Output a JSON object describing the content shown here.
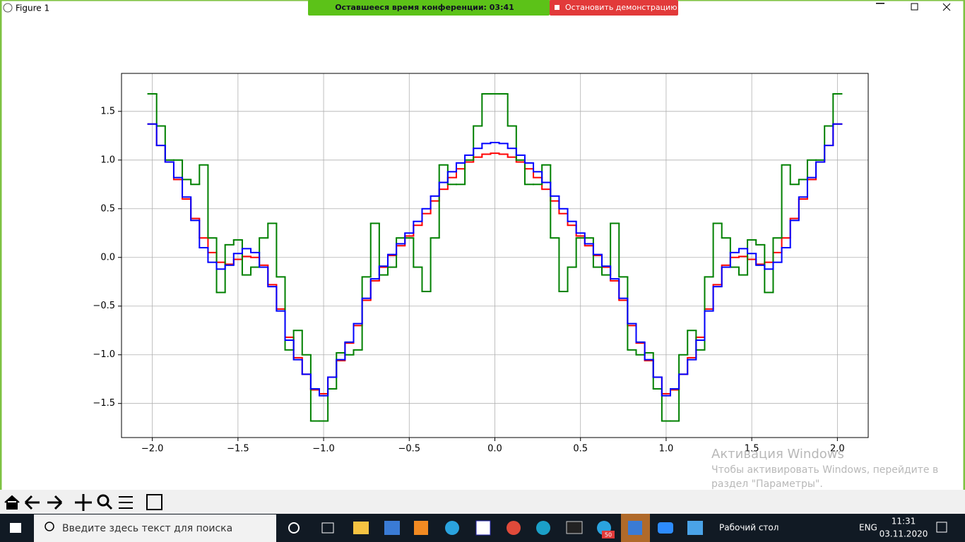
{
  "window": {
    "title": "Figure 1"
  },
  "conference": {
    "timer": "Оставшееся время конференции: 03:41",
    "stop": "Остановить демонстрацию"
  },
  "watermark": {
    "title": "Активация Windows",
    "line1": "Чтобы активировать Windows, перейдите в",
    "line2": "раздел \"Параметры\"."
  },
  "taskbar": {
    "search": "Введите здесь текст для поиска",
    "desktop": "Рабочий стол",
    "lang": "ENG",
    "time": "11:31",
    "date": "03.11.2020",
    "badge": "50"
  },
  "chart_data": {
    "type": "step",
    "x": [
      -2.0,
      -1.95,
      -1.9,
      -1.85,
      -1.8,
      -1.75,
      -1.7,
      -1.65,
      -1.6,
      -1.55,
      -1.5,
      -1.45,
      -1.4,
      -1.35,
      -1.3,
      -1.25,
      -1.2,
      -1.15,
      -1.1,
      -1.05,
      -1.0,
      -0.95,
      -0.9,
      -0.85,
      -0.8,
      -0.75,
      -0.7,
      -0.65,
      -0.6,
      -0.55,
      -0.5,
      -0.45,
      -0.4,
      -0.35,
      -0.3,
      -0.25,
      -0.2,
      -0.15,
      -0.1,
      -0.05,
      0.0,
      0.05,
      0.1,
      0.15,
      0.2,
      0.25,
      0.3,
      0.35,
      0.4,
      0.45,
      0.5,
      0.55,
      0.6,
      0.65,
      0.7,
      0.75,
      0.8,
      0.85,
      0.9,
      0.95,
      1.0,
      1.05,
      1.1,
      1.15,
      1.2,
      1.25,
      1.3,
      1.35,
      1.4,
      1.45,
      1.5,
      1.55,
      1.6,
      1.65,
      1.7,
      1.75,
      1.8,
      1.85,
      1.9,
      1.95,
      2.0
    ],
    "series": [
      {
        "color": "#ff0000",
        "values": [
          1.37,
          1.15,
          0.98,
          0.8,
          0.6,
          0.4,
          0.2,
          0.05,
          -0.05,
          -0.07,
          -0.02,
          0.01,
          0.0,
          -0.08,
          -0.28,
          -0.53,
          -0.82,
          -1.03,
          -1.2,
          -1.36,
          -1.4,
          -1.23,
          -1.06,
          -0.88,
          -0.7,
          -0.44,
          -0.24,
          -0.1,
          0.02,
          0.12,
          0.22,
          0.33,
          0.45,
          0.58,
          0.7,
          0.82,
          0.91,
          0.98,
          1.03,
          1.06,
          1.07,
          1.06,
          1.03,
          0.98,
          0.91,
          0.82,
          0.7,
          0.58,
          0.45,
          0.33,
          0.22,
          0.12,
          0.02,
          -0.1,
          -0.24,
          -0.44,
          -0.7,
          -0.88,
          -1.06,
          -1.23,
          -1.4,
          -1.36,
          -1.2,
          -1.03,
          -0.82,
          -0.53,
          -0.28,
          -0.08,
          0.0,
          0.01,
          -0.02,
          -0.07,
          -0.05,
          0.05,
          0.2,
          0.4,
          0.6,
          0.8,
          0.98,
          1.15,
          1.37
        ]
      },
      {
        "color": "#008000",
        "values": [
          1.68,
          1.35,
          1.0,
          1.0,
          0.8,
          0.75,
          0.95,
          0.2,
          -0.36,
          0.13,
          0.18,
          -0.18,
          -0.1,
          0.2,
          0.35,
          -0.2,
          -0.95,
          -0.75,
          -1.0,
          -1.68,
          -1.68,
          -1.35,
          -0.98,
          -1.0,
          -0.95,
          -0.2,
          0.35,
          -0.18,
          -0.1,
          0.2,
          0.2,
          -0.1,
          -0.35,
          0.2,
          0.95,
          0.75,
          0.75,
          1.0,
          1.35,
          1.68,
          1.68,
          1.68,
          1.35,
          1.0,
          0.75,
          0.75,
          0.95,
          0.2,
          -0.35,
          -0.1,
          0.2,
          0.2,
          -0.1,
          -0.18,
          0.35,
          -0.2,
          -0.95,
          -1.0,
          -0.98,
          -1.35,
          -1.68,
          -1.68,
          -1.0,
          -0.75,
          -0.95,
          -0.2,
          0.35,
          0.2,
          -0.1,
          -0.18,
          0.18,
          0.13,
          -0.36,
          0.2,
          0.95,
          0.75,
          0.8,
          1.0,
          1.0,
          1.35,
          1.68
        ]
      },
      {
        "color": "#0000ff",
        "values": [
          1.37,
          1.15,
          0.98,
          0.82,
          0.62,
          0.38,
          0.1,
          -0.05,
          -0.12,
          -0.08,
          0.04,
          0.09,
          0.05,
          -0.1,
          -0.3,
          -0.55,
          -0.85,
          -1.05,
          -1.2,
          -1.35,
          -1.42,
          -1.23,
          -1.05,
          -0.87,
          -0.68,
          -0.42,
          -0.22,
          -0.09,
          0.03,
          0.14,
          0.25,
          0.37,
          0.5,
          0.63,
          0.77,
          0.88,
          0.97,
          1.05,
          1.12,
          1.17,
          1.18,
          1.17,
          1.12,
          1.05,
          0.97,
          0.88,
          0.77,
          0.63,
          0.5,
          0.37,
          0.25,
          0.14,
          0.03,
          -0.09,
          -0.22,
          -0.42,
          -0.68,
          -0.87,
          -1.05,
          -1.23,
          -1.42,
          -1.35,
          -1.2,
          -1.05,
          -0.85,
          -0.55,
          -0.3,
          -0.1,
          0.05,
          0.09,
          0.04,
          -0.08,
          -0.12,
          -0.05,
          0.1,
          0.38,
          0.62,
          0.82,
          0.98,
          1.15,
          1.37
        ]
      }
    ],
    "xlim": [
      -2.18,
      2.18
    ],
    "ylim": [
      -1.85,
      1.89
    ],
    "xticks": [
      {
        "value": -2.0,
        "label": "−2.0"
      },
      {
        "value": -1.5,
        "label": "−1.5"
      },
      {
        "value": -1.0,
        "label": "−1.0"
      },
      {
        "value": -0.5,
        "label": "−0.5"
      },
      {
        "value": 0,
        "label": "0.0"
      },
      0.5,
      {
        "value": 1.0,
        "label": "1.0"
      },
      1.5,
      {
        "value": 2.0,
        "label": "2.0"
      }
    ],
    "yticks": [
      {
        "value": -1.5,
        "label": "−1.5"
      },
      {
        "value": -1.0,
        "label": "−1.0"
      },
      {
        "value": -0.5,
        "label": "−0.5"
      },
      {
        "value": 0,
        "label": "0.0"
      },
      0.5,
      {
        "value": 1.0,
        "label": "1.0"
      },
      1.5
    ],
    "grid": true
  }
}
